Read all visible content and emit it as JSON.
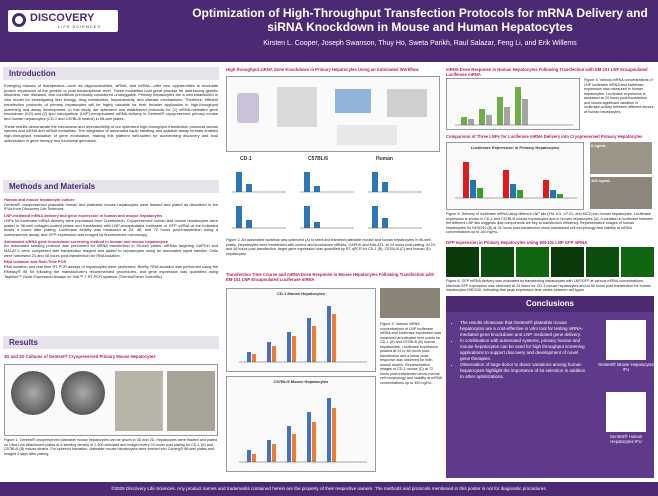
{
  "header": {
    "logo": "DISCOVERY",
    "logo_sub": "LIFE SCIENCES",
    "title": "Optimization of High-Throughput Transfection Protocols for mRNA Delivery and siRNA Knockdown in Mouse and Human Hepatocytes",
    "authors": "Kirsten L. Cooper, Joseph Swanson, Thuy Ho, Sweta Parikh, Raul Salazar, Feng Li, and Erik Willems"
  },
  "introduction": {
    "heading": "Introduction",
    "paragraphs": [
      "Emerging classes of therapeutics—such as oligonucleotides, siRNA, and mRNA—offer new opportunities to modulate protein expression at the genetic or post-transcriptional level. These modalities hold great promise for addressing genetic disorders, rare diseases, and conditions previously considered undruggable. Primary hepatocytes are a well-established in vitro model for investigating liver biology, drug metabolism, hepatotoxicity, and disease mechanisms. Therefore, efficient transfection protocols of primary hepatocytes will be highly valuable for their broader application in high-throughput screening and assay development. In this study, we optimized and established protocols for (1) siRNA-mediated gene knockdown (KD) and (2) lipid nanoparticle (LNP)-encapsulated mRNA delivery in Gentest® cryopreserved primary mouse and human hepatocytes (CD-1 and C57BL/6 strains) in 96-well plates.",
      "These results demonstrate the robustness and reproducibility of our optimized high-throughput transfection protocols across species and siRNA and mRNA modalities. The integration of automated liquid handling and scalable assay formats enables high-throughput evaluation of gene modulation, making this platform well-suited for accelerating discovery and lead optimization in gene therapy and functional genomics."
    ]
  },
  "methods": {
    "heading": "Methods and Materials",
    "sections": [
      {
        "title": "Human and mouse hepatocyte culture",
        "text": "Gentest® cryopreserved plateable human and plateable mouse hepatocytes were thawed and plated as described in the IFUs from Discovery Life Sciences."
      },
      {
        "title": "LNP-mediated mRNA delivery and gene expression in human and mouse hepatocytes",
        "text": "LNPs for luciferase mRNA delivery were purchased from Curebiotech. Cryopreserved human and mouse hepatocytes were plated in 96-well collagen-coated plates and transfected with LNP-encapsulated luciferase or GFP mRNA at the indicated doses 4 hours after plating. Luciferase activity was measured at 24, 48, and 72 hours post-transfection using a luminescence assay, and GFP expression was imaged by fluorescence microscopy."
      },
      {
        "title": "Automated siRNA gene knockdown screening method in human and mouse hepatocytes",
        "text": "An automated seeding protocol was performed for siRNA transfection in 96-well plates. siRNAs targeting GAPDH and MALAT-1 were complexed with transfection reagent and added to hepatocytes using an automated liquid handler. Cells were harvested 24 and 48 hours post-transfection for RNA isolation."
      },
      {
        "title": "RNA isolation and Real-Time PCR",
        "text": "RNA isolation and real time RT-PCR assays of hepatocytes were performed. Briefly, RNA isolation was performed using the RNeasy® 96 Kit following the manufacturer's recommended procedures, and gene expression was quantified using TaqMan™ Gene Expression Assays on ViiA™ 7 RT-PCR systems (ThermoFisher Scientific)."
      }
    ]
  },
  "results": {
    "heading": "Results",
    "subheading": "3D and 2D Cultures of Gentest® Cryopreserved Primary Mouse Hepatocytes",
    "caption": "Figure 1. Gentest® cryopreserved plateable mouse hepatocytes can be grown in 3D and 2D. Hepatocytes were thawed and plated on Ultra-Low Attachment plates at a seeding density of 2,400 cells/well and imaged every 24 hours post plating for CD-1 (A) and C57BL/6 (B) mouse strains. For spheroid formation, plateable mouse hepatocytes were seeded into Corning® 96-well plates and imaged 4 days after plating."
  },
  "figure2": {
    "heading": "High-throughput siRNA Gene Knockdown in Primary Hepatocytes Using an Automated Workflow",
    "panels": [
      "CD-1",
      "C57BL/6",
      "Human"
    ],
    "caption": "Figure 2. An automated workflow was optimized (A) to seed and transfect plateable mouse and human hepatocytes in 96-well plates. Hepatocytes were transfected with control and knockdown siRNAs, GAPDH and MALAT1, at 24 hours post-plating. At 24 and 48 hours post-transfection, target gene expression was quantified by RT-qPCR for CD-1 (B), C57BL/6 (C) and human (D) hepatocytes."
  },
  "figure3": {
    "heading": "Transfection Time Course and mRNA Dose Response in Mouse Hepatocytes Following Transfection with EM-101 LNP Encapsulated Luciferase mRNA",
    "charts": [
      "CD-1 Mouse Hepatocytes",
      "C57BL/6 Mouse Hepatocytes"
    ],
    "caption": "Figure 3. Various mRNA concentrations of LNP luciferase mRNA and luciferase expression was measured at indicated time points for CD-1 (A) and C57BL/6 (B) mouse hepatocytes. Luciferase expression peaked at 24 to 48 hours post-transfection and a linear dose response was observed for both mouse strains. Representative images of CD-1 mouse (C) at 72 hours post-transfection show normal cell morphology and viability at mRNA concentrations up to 400 ng/mL."
  },
  "figure4": {
    "heading": "mRNA Dose Response in Human Hepatocytes Following Transfection with EM-101 LNP Encapsulated Luciferase mRNA",
    "caption": "Figure 4. Various mRNA concentrations of LNP luciferase mRNA and luciferase expression was measured in human hepatocytes. Luciferase expression is assessed at 24 hours post-transfection and shows significant variation in luciferase activity between different donors of human hepatocytes."
  },
  "figure5": {
    "heading": "Comparison of Three LNPs for Luciferase mRNA Delivery into Cryopreserved Primary Hepatocytes",
    "chart_title": "Luciferase Expression in Primary Hepatocytes",
    "images": [
      "0 ng/mL",
      "100 ng/mL"
    ],
    "caption": "Figure 5. Delivery of luciferase mRNA using different LNP kits (EM-101, LP-01, and MC3) into human hepatocytes. Luciferase expression is shown in CD-1 and C57BL/6 mouse hepatocytes and in human hepatocytes (A). A variation in luciferase between the different LNP kits suggests lipid components are key to transfection efficiency. Representative images of human hepatocytes for HHD240 (B) at 24 hours post-transfection show maintained cell morphology and viability at mRNA concentrations up to 100 ng/mL."
  },
  "figure6": {
    "heading": "GFP expression in Primary Hepatocytes Using EM-101 LNP GFP mRNA",
    "caption": "Figure 6. GFP mRNA delivery was evaluated by transfecting hepatocytes with LNP/GFP at various mRNA concentrations. Maximal GFP expression was observed at 24 hours for CD-1 mouse hepatocytes and at 48 hours post-transfection for human hepatocytes HHD240, indicating that peak expression time varies between cell types."
  },
  "conclusions": {
    "heading": "Conclusions",
    "bullets": [
      "The results showcase that Gentest® plateable mouse hepatocytes are a cost-effective in vitro tool for testing siRNA-mediated gene knockdown and LNP mediated gene delivery.",
      "In combination with automated systems, primary human and mouse hepatocytes can be used for high throughput screening applications to support discovery and development of novel gene therapies.",
      "Observation of large donor to donor variations among human hepatocytes highlight the importance of lot selection in addition to other optimizations."
    ],
    "images": [
      "Gentest® Mouse Hepatocytes IFU",
      "Gentest® Human Hepatocytes IFU"
    ]
  },
  "footer": "©2025 Discovery Life Sciences. Any product names and trademarks contained herein are the property of their respective owners. The methods and protocols mentioned in this poster is not for diagnostic procedures."
}
